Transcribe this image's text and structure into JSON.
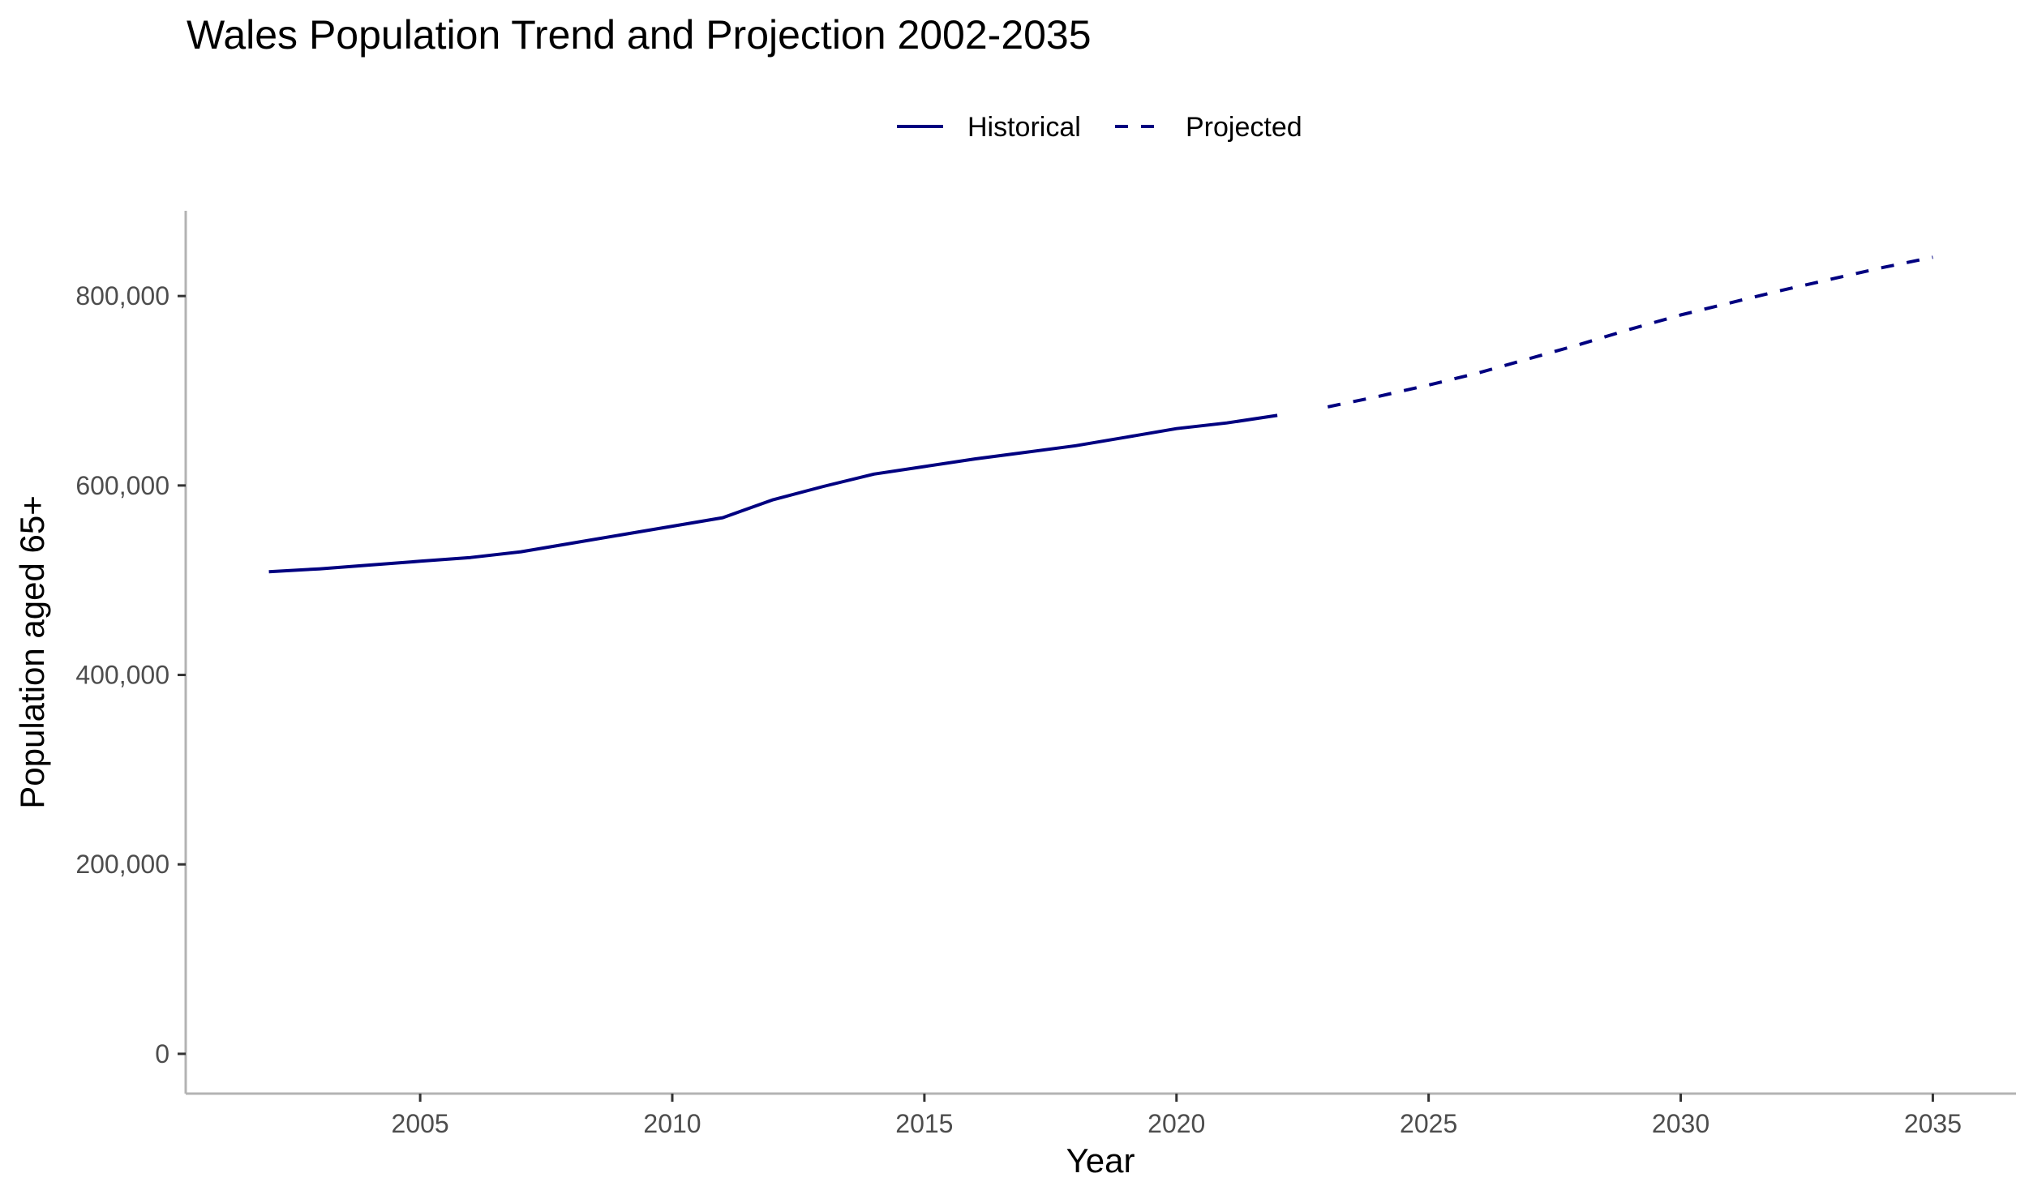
{
  "chart_data": {
    "type": "line",
    "title": "Wales Population Trend and Projection 2002-2035",
    "xlabel": "Year",
    "ylabel": "Population aged 65+",
    "xlim": [
      2000.35,
      2036.65
    ],
    "ylim": [
      -42000,
      890000
    ],
    "x_ticks": [
      2005,
      2010,
      2015,
      2020,
      2025,
      2030,
      2035
    ],
    "y_ticks": [
      0,
      200000,
      400000,
      600000,
      800000
    ],
    "y_tick_labels": [
      "0",
      "200,000",
      "400,000",
      "600,000",
      "800,000"
    ],
    "grid": false,
    "legend_position": "top",
    "series": [
      {
        "name": "Historical",
        "style": "solid",
        "color": "#000080",
        "x": [
          2002,
          2003,
          2004,
          2005,
          2006,
          2007,
          2008,
          2009,
          2010,
          2011,
          2012,
          2013,
          2014,
          2015,
          2016,
          2017,
          2018,
          2019,
          2020,
          2021,
          2022
        ],
        "values": [
          509000,
          512000,
          516000,
          520000,
          524000,
          530000,
          539000,
          548000,
          557000,
          566000,
          585000,
          599000,
          612000,
          620000,
          628000,
          635000,
          642000,
          651000,
          660000,
          666000,
          674000
        ]
      },
      {
        "name": "Projected",
        "style": "dashed",
        "color": "#000080",
        "x": [
          2023,
          2024,
          2025,
          2026,
          2027,
          2028,
          2029,
          2030,
          2031,
          2032,
          2033,
          2034,
          2035
        ],
        "values": [
          683000,
          694000,
          706000,
          719000,
          734000,
          749000,
          765000,
          780000,
          793000,
          806000,
          818000,
          830000,
          841000
        ]
      }
    ]
  }
}
